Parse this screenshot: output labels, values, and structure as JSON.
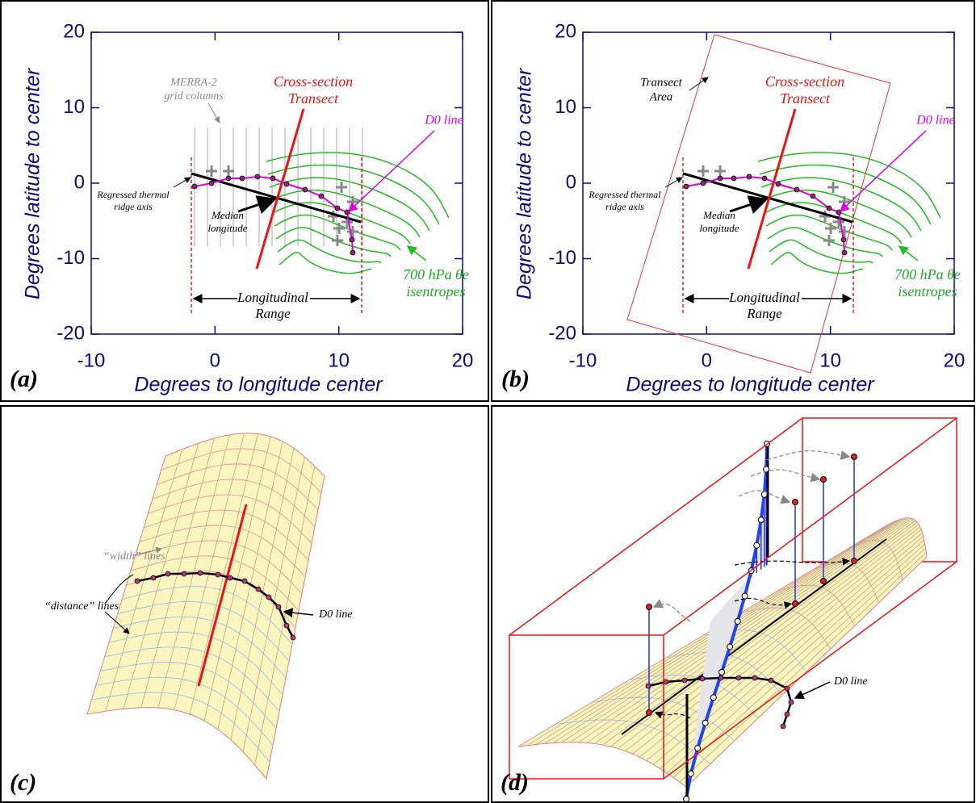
{
  "panels": [
    {
      "label": "(a)",
      "x_axis": {
        "label": "Degrees to longitude center",
        "lim": [
          -10,
          20
        ],
        "ticks": [
          -10,
          0,
          10,
          20
        ]
      },
      "y_axis": {
        "label": "Degrees latitude to center",
        "lim": [
          -20,
          20
        ],
        "ticks": [
          -20,
          -10,
          0,
          10,
          20
        ]
      },
      "annotations": {
        "grid_columns": [
          "MERRA-2",
          "grid columns"
        ],
        "transect": [
          "Cross-section",
          "Transect"
        ],
        "d0": [
          "D0 line"
        ],
        "ridge": [
          "Regressed thermal",
          "ridge axis"
        ],
        "median": [
          "Median",
          "longitude"
        ],
        "range": [
          "Longitudinal",
          "Range"
        ],
        "isentropes": [
          "700 hPa θe",
          "isentropes"
        ]
      }
    },
    {
      "label": "(b)",
      "x_axis": {
        "label": "Degrees to longitude center",
        "lim": [
          -10,
          20
        ],
        "ticks": [
          -10,
          0,
          10,
          20
        ]
      },
      "y_axis": {
        "label": "Degrees latitude to center",
        "lim": [
          -20,
          20
        ],
        "ticks": [
          -20,
          -10,
          0,
          10,
          20
        ]
      },
      "annotations": {
        "transect_area": [
          "Transect",
          "Area"
        ],
        "transect": [
          "Cross-section",
          "Transect"
        ],
        "d0": [
          "D0 line"
        ],
        "ridge": [
          "Regressed thermal",
          "ridge axis"
        ],
        "median": [
          "Median",
          "longitude"
        ],
        "range": [
          "Longitudinal",
          "Range"
        ],
        "isentropes": [
          "700 hPa θe",
          "isentropes"
        ]
      }
    },
    {
      "label": "(c)",
      "annotations": {
        "width": [
          "“width” lines"
        ],
        "distance": [
          "“distance” lines"
        ],
        "d0": [
          "D0 line"
        ]
      }
    },
    {
      "label": "(d)",
      "annotations": {
        "d0": [
          "D0 line"
        ]
      }
    }
  ]
}
